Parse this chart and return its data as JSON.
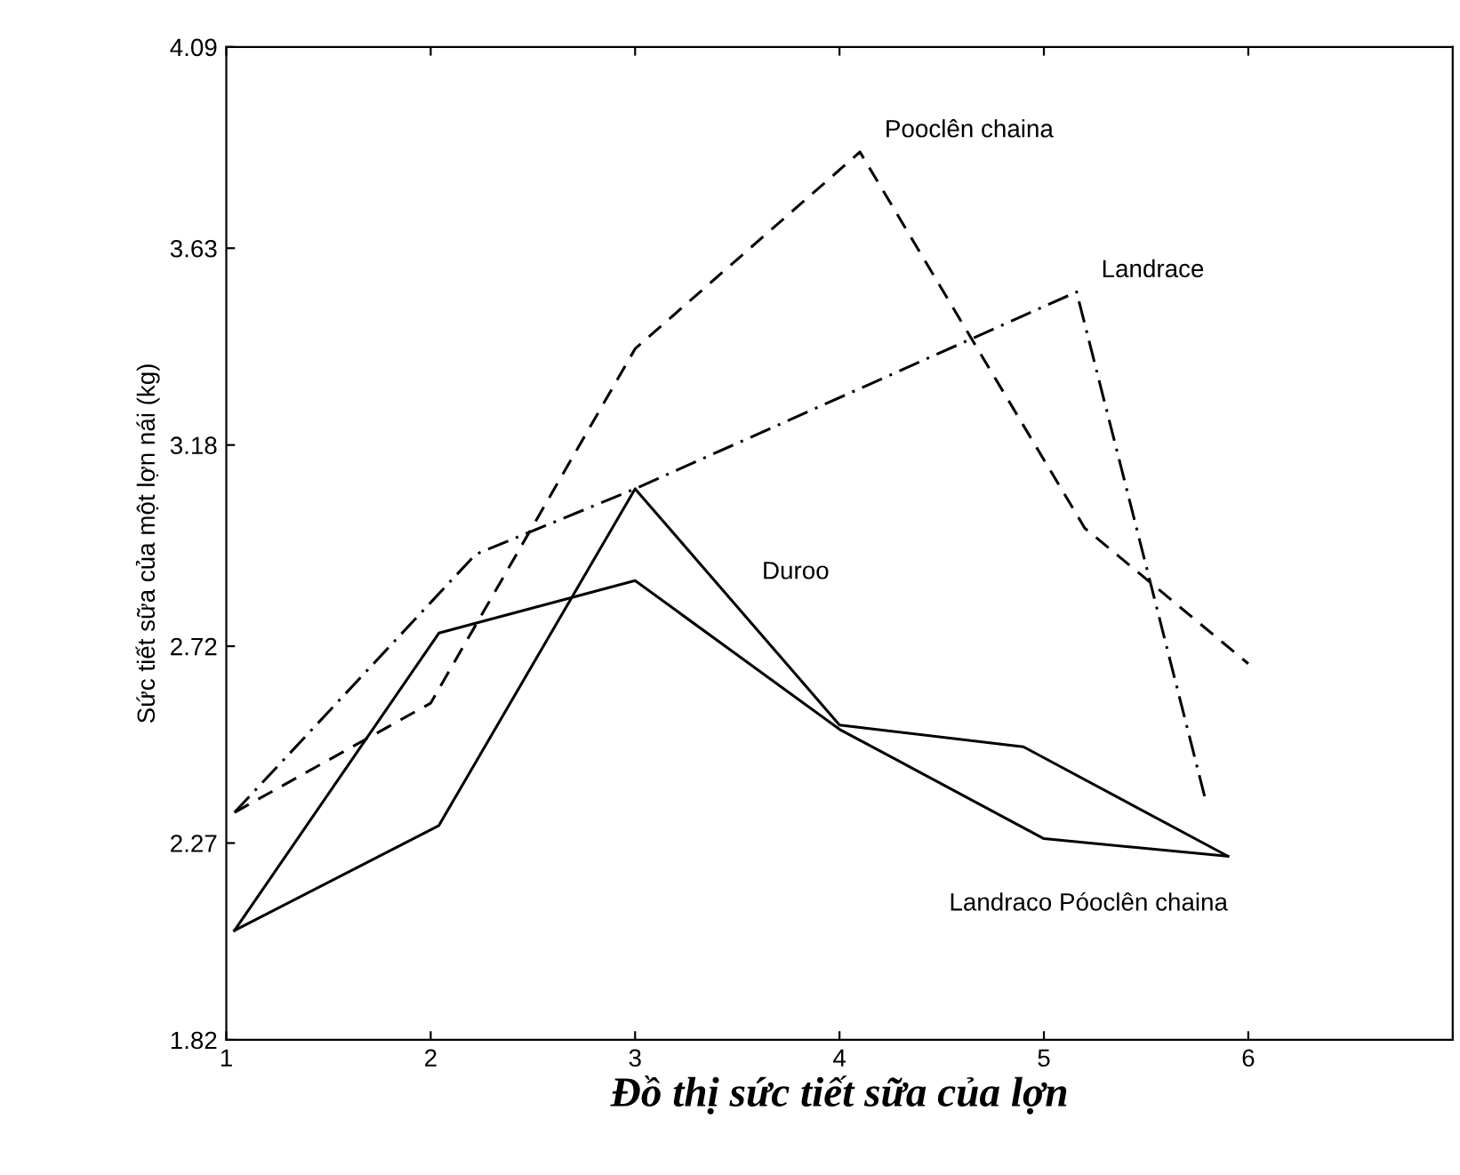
{
  "chart_data": {
    "type": "line",
    "title": "Đồ thị sức tiết sữa của lợn",
    "ylabel": "Sức tiết sữa của một lợn nái (kg)",
    "xlim": [
      1,
      7
    ],
    "xticks": [
      1,
      2,
      3,
      4,
      5,
      6
    ],
    "ylim": [
      1.82,
      4.09
    ],
    "yticks": [
      1.82,
      2.27,
      2.72,
      3.18,
      3.63,
      4.09
    ],
    "grid": false,
    "legend": false,
    "marker": "none",
    "series": [
      {
        "color": "#000000",
        "line_style": "dashed",
        "x": [
          1.04,
          2.0,
          3.0,
          4.1,
          5.2,
          6.0
        ],
        "values": [
          2.34,
          2.59,
          3.4,
          3.85,
          2.99,
          2.68
        ]
      },
      {
        "color": "#000000",
        "line_style": "dashdot",
        "x": [
          1.04,
          2.22,
          3.0,
          5.16,
          5.79
        ],
        "values": [
          2.34,
          2.93,
          3.08,
          3.53,
          2.37
        ]
      },
      {
        "color": "#000000",
        "line_style": "solid",
        "x": [
          1.04,
          2.04,
          3.0,
          4.0,
          4.9,
          5.9
        ],
        "values": [
          2.07,
          2.31,
          3.08,
          2.54,
          2.49,
          2.24
        ]
      },
      {
        "color": "#000000",
        "line_style": "solid",
        "x": [
          1.04,
          2.04,
          3.0,
          4.0,
          5.0,
          5.9
        ],
        "values": [
          2.07,
          2.75,
          2.87,
          2.53,
          2.28,
          2.24
        ]
      }
    ],
    "annotations": [
      {
        "text": "Pooclên chaina",
        "x": 4.1,
        "y": 3.85
      },
      {
        "text": "Landrace",
        "x": 5.16,
        "y": 3.53
      },
      {
        "text": "Duroo",
        "x": 3.5,
        "y": 2.84
      },
      {
        "text": "Landraco Póoclên chaina",
        "x": 5.9,
        "y": 2.24
      }
    ]
  }
}
